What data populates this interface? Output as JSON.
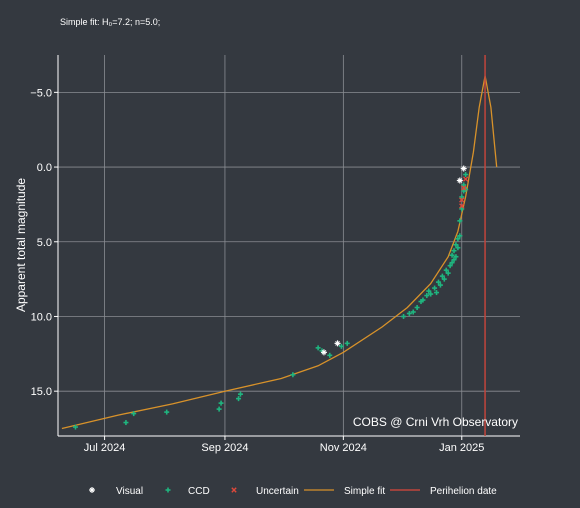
{
  "chart_data": {
    "type": "scatter",
    "subtitle": "Simple fit: H₀=7.2; n=5.0;",
    "ylabel": "Apparent total magnitude",
    "xlabel": "",
    "y_inverted": true,
    "ylim": [
      18.0,
      -7.5
    ],
    "xlim": [
      "2024-06-07",
      "2025-01-31"
    ],
    "x_ticks": [
      {
        "date": "2024-07-01",
        "label": "Jul 2024"
      },
      {
        "date": "2024-09-01",
        "label": "Sep 2024"
      },
      {
        "date": "2024-11-01",
        "label": "Nov 2024"
      },
      {
        "date": "2025-01-01",
        "label": "Jan 2025"
      }
    ],
    "y_ticks": [
      {
        "value": -5,
        "label": "−5.0"
      },
      {
        "value": 0,
        "label": "0.0"
      },
      {
        "value": 5,
        "label": "5.0"
      },
      {
        "value": 10,
        "label": "10.0"
      },
      {
        "value": 15,
        "label": "15.0"
      }
    ],
    "grid": true,
    "legend_position": "bottom",
    "watermark": "COBS @ Crni Vrh Observatory",
    "perihelion_date": "2025-01-13",
    "colors": {
      "background": "#343940",
      "grid": "#8a8d92",
      "visual": "#ffffff",
      "ccd": "#1fb57f",
      "uncertain": "#e0493a",
      "fit": "#d8922a",
      "perihelion": "#c0453c"
    },
    "series": [
      {
        "name": "Visual",
        "marker": "star",
        "points": [
          [
            "2024-10-22",
            12.4
          ],
          [
            "2024-10-29",
            11.8
          ],
          [
            "2024-12-31",
            0.9
          ],
          [
            "2025-01-02",
            0.1
          ]
        ]
      },
      {
        "name": "CCD",
        "marker": "plus",
        "points": [
          [
            "2024-06-16",
            17.4
          ],
          [
            "2024-07-12",
            17.1
          ],
          [
            "2024-07-16",
            16.5
          ],
          [
            "2024-08-02",
            16.4
          ],
          [
            "2024-08-29",
            16.2
          ],
          [
            "2024-08-30",
            15.8
          ],
          [
            "2024-09-08",
            15.5
          ],
          [
            "2024-09-09",
            15.2
          ],
          [
            "2024-10-06",
            13.9
          ],
          [
            "2024-10-19",
            12.1
          ],
          [
            "2024-10-21",
            12.3
          ],
          [
            "2024-10-25",
            12.6
          ],
          [
            "2024-10-31",
            12.0
          ],
          [
            "2024-11-03",
            11.8
          ],
          [
            "2024-12-02",
            10.0
          ],
          [
            "2024-12-05",
            9.8
          ],
          [
            "2024-12-07",
            9.7
          ],
          [
            "2024-12-09",
            9.4
          ],
          [
            "2024-12-11",
            9.0
          ],
          [
            "2024-12-12",
            8.9
          ],
          [
            "2024-12-14",
            8.6
          ],
          [
            "2024-12-15",
            8.3
          ],
          [
            "2024-12-16",
            8.5
          ],
          [
            "2024-12-18",
            8.1
          ],
          [
            "2024-12-19",
            8.4
          ],
          [
            "2024-12-20",
            7.7
          ],
          [
            "2024-12-21",
            7.9
          ],
          [
            "2024-12-22",
            7.3
          ],
          [
            "2024-12-23",
            7.5
          ],
          [
            "2024-12-24",
            6.9
          ],
          [
            "2024-12-25",
            7.1
          ],
          [
            "2024-12-26",
            6.6
          ],
          [
            "2024-12-27",
            6.4
          ],
          [
            "2024-12-27",
            5.9
          ],
          [
            "2024-12-28",
            6.2
          ],
          [
            "2024-12-28",
            5.6
          ],
          [
            "2024-12-29",
            5.2
          ],
          [
            "2024-12-29",
            6.0
          ],
          [
            "2024-12-30",
            4.8
          ],
          [
            "2024-12-30",
            5.4
          ],
          [
            "2024-12-31",
            4.6
          ],
          [
            "2024-12-31",
            3.6
          ],
          [
            "2025-01-01",
            2.8
          ],
          [
            "2025-01-01",
            2.0
          ],
          [
            "2025-01-02",
            1.6
          ],
          [
            "2025-01-02",
            1.2
          ],
          [
            "2025-01-03",
            0.5
          ],
          [
            "2025-01-03",
            1.5
          ]
        ]
      },
      {
        "name": "Uncertain",
        "marker": "x",
        "points": [
          [
            "2025-01-01",
            2.6
          ],
          [
            "2025-01-01",
            2.2
          ],
          [
            "2025-01-02",
            1.4
          ],
          [
            "2025-01-03",
            0.8
          ]
        ]
      },
      {
        "name": "Simple fit",
        "marker": "line",
        "points": [
          [
            "2024-06-09",
            17.5
          ],
          [
            "2024-07-08",
            16.6
          ],
          [
            "2024-08-05",
            15.85
          ],
          [
            "2024-09-01",
            15.0
          ],
          [
            "2024-09-30",
            14.15
          ],
          [
            "2024-10-19",
            13.3
          ],
          [
            "2024-11-01",
            12.4
          ],
          [
            "2024-11-21",
            10.7
          ],
          [
            "2024-12-04",
            9.4
          ],
          [
            "2024-12-16",
            7.8
          ],
          [
            "2024-12-25",
            6.0
          ],
          [
            "2024-12-30",
            4.3
          ],
          [
            "2025-01-03",
            2.0
          ],
          [
            "2025-01-07",
            -1.0
          ],
          [
            "2025-01-10",
            -4.0
          ],
          [
            "2025-01-13",
            -6.1
          ],
          [
            "2025-01-16",
            -4.0
          ],
          [
            "2025-01-18",
            -1.3
          ],
          [
            "2025-01-19",
            0.0
          ]
        ]
      },
      {
        "name": "Perihelion date",
        "marker": "vline",
        "points": [
          [
            "2025-01-13",
            null
          ]
        ]
      }
    ]
  }
}
